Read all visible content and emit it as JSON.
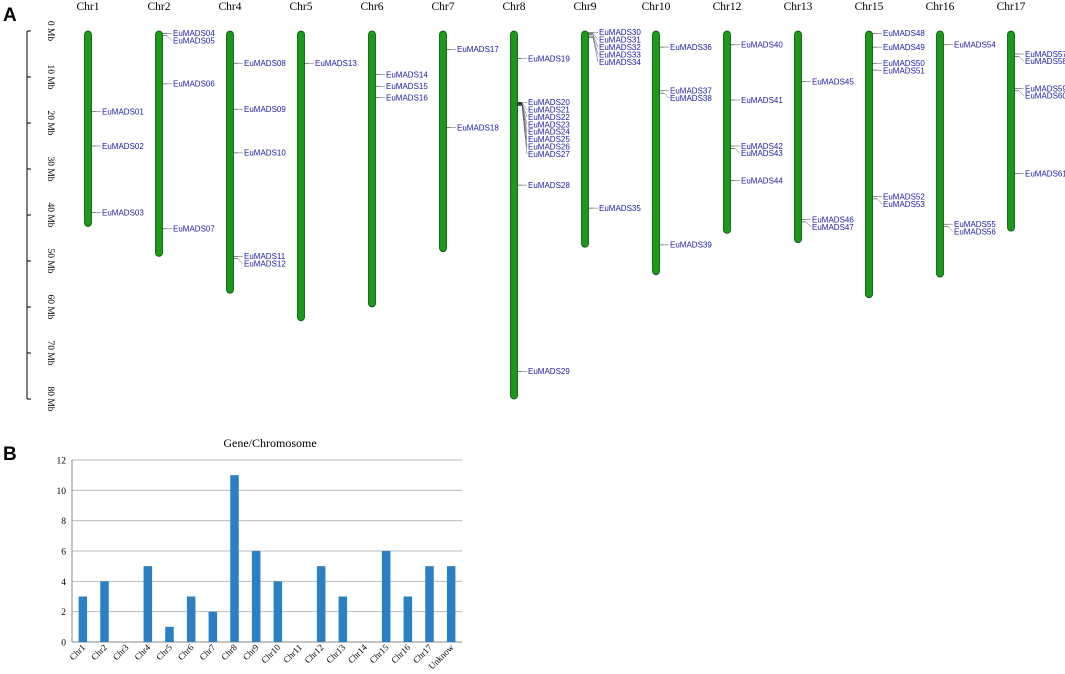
{
  "panels": {
    "a": "A",
    "b": "B"
  },
  "colors": {
    "chromosome_fill": "#1a9a1a",
    "chromosome_stroke": "#0a4a0a",
    "gene_text": "#1a1aa6",
    "bar": "#2a80c2",
    "grid": "#bbbbbb"
  },
  "chart_data": [
    {
      "type": "chromosome_map",
      "scale_unit": "Mb",
      "scale_ticks": [
        "0 Mb",
        "10 Mb",
        "20 Mb",
        "30 Mb",
        "40 Mb",
        "50 Mb",
        "60 Mb",
        "70 Mb",
        "80 Mb"
      ],
      "ylim": [
        0,
        80
      ],
      "chromosomes": [
        {
          "name": "Chr1",
          "length": 42.5,
          "genes": [
            {
              "id": "EuMADS01",
              "pos": 17.5
            },
            {
              "id": "EuMADS02",
              "pos": 25
            },
            {
              "id": "EuMADS03",
              "pos": 39.5
            }
          ]
        },
        {
          "name": "Chr2",
          "length": 49,
          "genes": [
            {
              "id": "EuMADS04",
              "pos": 0.5
            },
            {
              "id": "EuMADS05",
              "pos": 1
            },
            {
              "id": "EuMADS06",
              "pos": 11.5
            },
            {
              "id": "EuMADS07",
              "pos": 43
            }
          ]
        },
        {
          "name": "Chr4",
          "length": 57,
          "genes": [
            {
              "id": "EuMADS08",
              "pos": 7
            },
            {
              "id": "EuMADS09",
              "pos": 17
            },
            {
              "id": "EuMADS10",
              "pos": 26.5
            },
            {
              "id": "EuMADS11",
              "pos": 49
            },
            {
              "id": "EuMADS12",
              "pos": 49.5
            }
          ]
        },
        {
          "name": "Chr5",
          "length": 63,
          "genes": [
            {
              "id": "EuMADS13",
              "pos": 7
            }
          ]
        },
        {
          "name": "Chr6",
          "length": 60,
          "genes": [
            {
              "id": "EuMADS14",
              "pos": 9.5
            },
            {
              "id": "EuMADS15",
              "pos": 12
            },
            {
              "id": "EuMADS16",
              "pos": 14.5
            }
          ]
        },
        {
          "name": "Chr7",
          "length": 48,
          "genes": [
            {
              "id": "EuMADS17",
              "pos": 4
            },
            {
              "id": "EuMADS18",
              "pos": 21
            }
          ]
        },
        {
          "name": "Chr8",
          "length": 80,
          "genes": [
            {
              "id": "EuMADS19",
              "pos": 6
            },
            {
              "id": "EuMADS20",
              "pos": 15.5
            },
            {
              "id": "EuMADS21",
              "pos": 15.6
            },
            {
              "id": "EuMADS22",
              "pos": 15.7
            },
            {
              "id": "EuMADS23",
              "pos": 15.8
            },
            {
              "id": "EuMADS24",
              "pos": 15.9
            },
            {
              "id": "EuMADS25",
              "pos": 16
            },
            {
              "id": "EuMADS26",
              "pos": 16.1
            },
            {
              "id": "EuMADS27",
              "pos": 16.2
            },
            {
              "id": "EuMADS28",
              "pos": 33.5
            },
            {
              "id": "EuMADS29",
              "pos": 74
            }
          ]
        },
        {
          "name": "Chr9",
          "length": 47,
          "genes": [
            {
              "id": "EuMADS30",
              "pos": 0.3
            },
            {
              "id": "EuMADS31",
              "pos": 0.5
            },
            {
              "id": "EuMADS32",
              "pos": 0.8
            },
            {
              "id": "EuMADS33",
              "pos": 1.1
            },
            {
              "id": "EuMADS34",
              "pos": 1.4
            },
            {
              "id": "EuMADS35",
              "pos": 38.5
            }
          ]
        },
        {
          "name": "Chr10",
          "length": 53,
          "genes": [
            {
              "id": "EuMADS36",
              "pos": 3.5
            },
            {
              "id": "EuMADS37",
              "pos": 13
            },
            {
              "id": "EuMADS38",
              "pos": 13.5
            },
            {
              "id": "EuMADS39",
              "pos": 46.5
            }
          ]
        },
        {
          "name": "Chr12",
          "length": 44,
          "genes": [
            {
              "id": "EuMADS40",
              "pos": 3
            },
            {
              "id": "EuMADS41",
              "pos": 15
            },
            {
              "id": "EuMADS42",
              "pos": 25
            },
            {
              "id": "EuMADS43",
              "pos": 25.5
            },
            {
              "id": "EuMADS44",
              "pos": 32.5
            }
          ]
        },
        {
          "name": "Chr13",
          "length": 46,
          "genes": [
            {
              "id": "EuMADS45",
              "pos": 11
            },
            {
              "id": "EuMADS46",
              "pos": 41
            },
            {
              "id": "EuMADS47",
              "pos": 41.5
            }
          ]
        },
        {
          "name": "Chr15",
          "length": 58,
          "genes": [
            {
              "id": "EuMADS48",
              "pos": 0.5
            },
            {
              "id": "EuMADS49",
              "pos": 3.5
            },
            {
              "id": "EuMADS50",
              "pos": 7
            },
            {
              "id": "EuMADS51",
              "pos": 8.5
            },
            {
              "id": "EuMADS52",
              "pos": 36
            },
            {
              "id": "EuMADS53",
              "pos": 36.5
            }
          ]
        },
        {
          "name": "Chr16",
          "length": 53.5,
          "genes": [
            {
              "id": "EuMADS54",
              "pos": 3
            },
            {
              "id": "EuMADS55",
              "pos": 42
            },
            {
              "id": "EuMADS56",
              "pos": 42.5
            }
          ]
        },
        {
          "name": "Chr17",
          "length": 43.5,
          "genes": [
            {
              "id": "EuMADS57",
              "pos": 5
            },
            {
              "id": "EuMADS58",
              "pos": 5.5
            },
            {
              "id": "EuMADS59",
              "pos": 12.5
            },
            {
              "id": "EuMADS60",
              "pos": 13
            },
            {
              "id": "EuMADS61",
              "pos": 31
            }
          ]
        }
      ]
    },
    {
      "type": "bar",
      "title": "Gene/Chromosome",
      "categories": [
        "Chr1",
        "Chr2",
        "Chr3",
        "Chr4",
        "Chr5",
        "Chr6",
        "Chr7",
        "Chr8",
        "Chr9",
        "Chr10",
        "Chr11",
        "Chr12",
        "Chr13",
        "Chr14",
        "Chr15",
        "Chr16",
        "Chr17",
        "Unknow"
      ],
      "values": [
        3,
        4,
        0,
        5,
        1,
        3,
        2,
        11,
        6,
        4,
        0,
        5,
        3,
        0,
        6,
        3,
        5,
        5
      ],
      "ylim": [
        0,
        12
      ],
      "yticks": [
        0,
        2,
        4,
        6,
        8,
        10,
        12
      ],
      "grid": true,
      "xlabel": "",
      "ylabel": ""
    }
  ]
}
